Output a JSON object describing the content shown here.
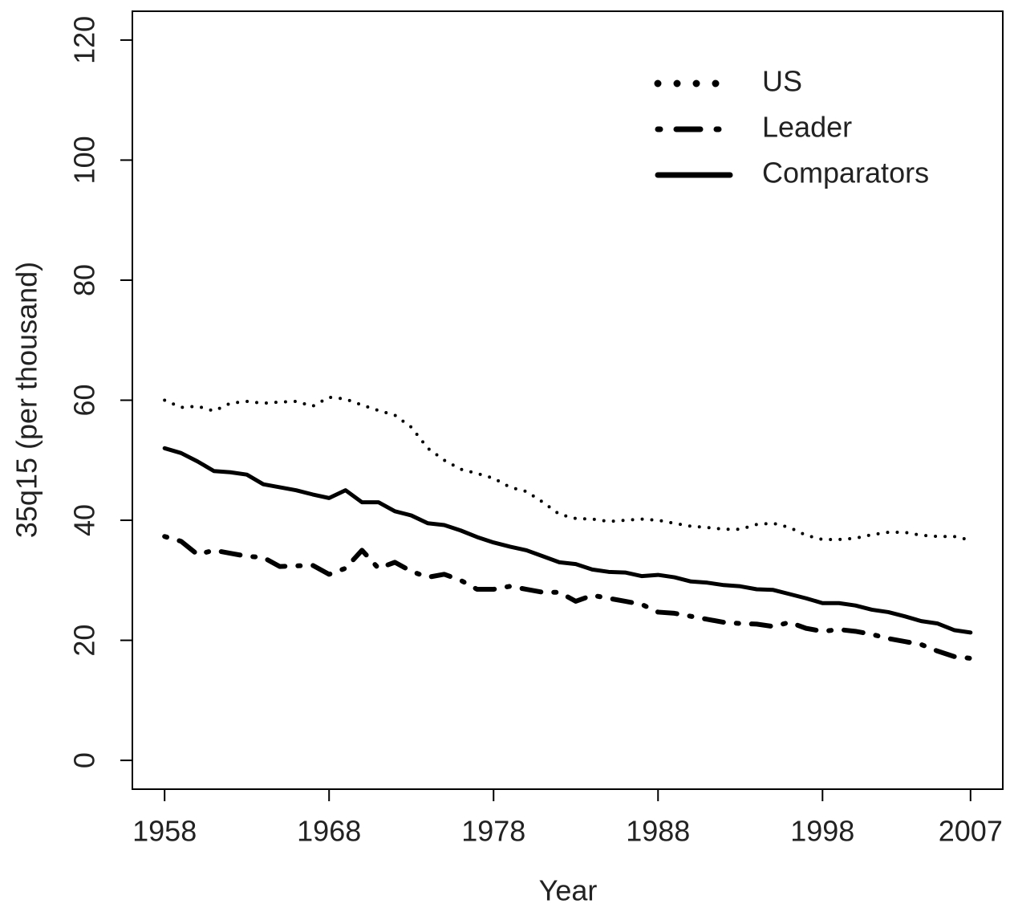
{
  "chart_data": {
    "type": "line",
    "x_label": "Year",
    "y_label": "35q15 (per thousand)",
    "x": [
      1958,
      1959,
      1960,
      1961,
      1962,
      1963,
      1964,
      1965,
      1966,
      1967,
      1968,
      1969,
      1970,
      1971,
      1972,
      1973,
      1974,
      1975,
      1976,
      1977,
      1978,
      1979,
      1980,
      1981,
      1982,
      1983,
      1984,
      1985,
      1986,
      1987,
      1988,
      1989,
      1990,
      1991,
      1992,
      1993,
      1994,
      1995,
      1996,
      1997,
      1998,
      1999,
      2000,
      2001,
      2002,
      2003,
      2004,
      2005,
      2006,
      2007
    ],
    "series": [
      {
        "name": "US",
        "color": "#000000",
        "dash": "dotted",
        "values": [
          60,
          58.8,
          59,
          58.2,
          59.5,
          59.8,
          59.5,
          59.7,
          59.8,
          59,
          60.5,
          60.2,
          59.2,
          58.3,
          57.5,
          55.5,
          52,
          50,
          48.5,
          47.8,
          47,
          45.5,
          44.8,
          43,
          41,
          40.3,
          40.2,
          39.8,
          40,
          40.2,
          40,
          39.5,
          39,
          38.8,
          38.5,
          38.5,
          39.3,
          39.5,
          38.8,
          37.5,
          36.8,
          36.8,
          37,
          37.6,
          38,
          38,
          37.5,
          37.3,
          37.3,
          36.7
        ]
      },
      {
        "name": "Leader",
        "color": "#000000",
        "dash": "dashed",
        "values": [
          37.3,
          36.5,
          34.3,
          35,
          34.5,
          34,
          33.8,
          32.3,
          32.4,
          32.5,
          31,
          32,
          35,
          32,
          33,
          31.5,
          30.5,
          31,
          30,
          28.5,
          28.5,
          29,
          28.5,
          28,
          28,
          26.5,
          27.5,
          27,
          26.5,
          26,
          24.7,
          24.5,
          24,
          23.5,
          23,
          22.8,
          22.7,
          22.3,
          23,
          22,
          21.5,
          21.8,
          21.5,
          21,
          20.3,
          19.8,
          19.3,
          18.2,
          17.3,
          17
        ]
      },
      {
        "name": "Comparators",
        "color": "#000000",
        "dash": "solid",
        "values": [
          52,
          51.2,
          49.8,
          48.2,
          48,
          47.6,
          46,
          45.5,
          45,
          44.3,
          43.7,
          45,
          43,
          43,
          41.5,
          40.8,
          39.5,
          39.2,
          38.3,
          37.2,
          36.3,
          35.6,
          35,
          34,
          33,
          32.7,
          31.8,
          31.4,
          31.3,
          30.7,
          30.9,
          30.5,
          29.8,
          29.6,
          29.2,
          29,
          28.5,
          28.4,
          27.7,
          27,
          26.2,
          26.2,
          25.8,
          25.1,
          24.7,
          24,
          23.2,
          22.8,
          21.7,
          21.3
        ]
      }
    ],
    "xlim": [
      1956.04,
      2008.96
    ],
    "xticks": [
      1958,
      1968,
      1978,
      1988,
      1998,
      2007
    ],
    "ylim": [
      -4.8,
      124.8
    ],
    "yticks": [
      0,
      20,
      40,
      60,
      80,
      100,
      120
    ],
    "legend": "top right",
    "grid": false
  }
}
